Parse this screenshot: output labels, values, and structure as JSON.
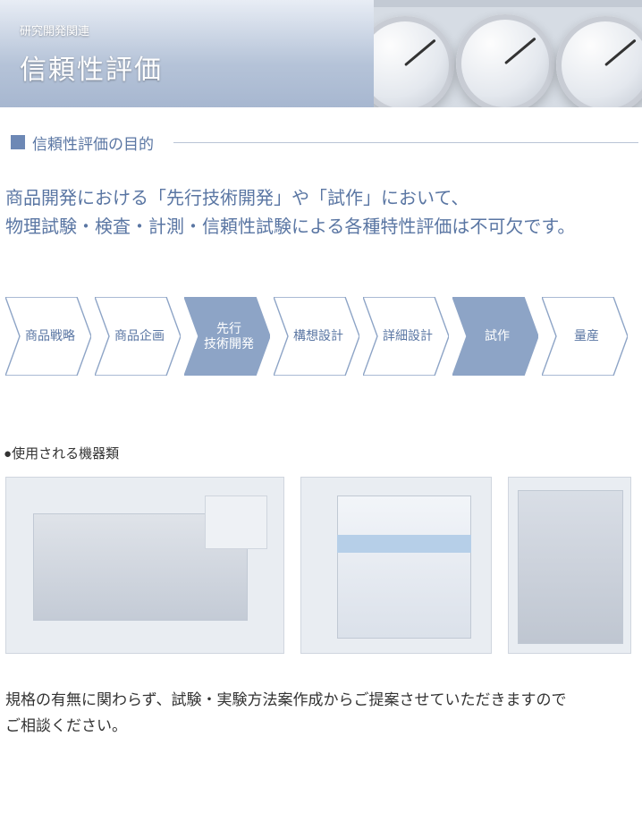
{
  "banner": {
    "category": "研究開発関連",
    "title": "信頼性評価",
    "grad_top": "#e8edf5",
    "grad_mid": "#b5c3d8",
    "grad_bot": "#a7b7d0"
  },
  "section_heading": {
    "marker_color": "#6d88b5",
    "text": "信頼性評価の目的",
    "text_color": "#5a76a3",
    "rule_color": "#b9c4d6"
  },
  "intro": {
    "line1": "商品開発における「先行技術開発」や「試作」において、",
    "line2": "物理試験・検査・計測・信頼性試験による各種特性評価は不可欠です。",
    "color": "#5a76a3",
    "fontsize": 20
  },
  "flow": {
    "outline_stroke": "#8da4c6",
    "outline_text_color": "#5a76a3",
    "fill_color": "#8da4c6",
    "fill_text_color": "#ffffff",
    "steps": [
      {
        "label": "商品戦略",
        "filled": false
      },
      {
        "label": "商品企画",
        "filled": false
      },
      {
        "label": "先行\n技術開発",
        "filled": true
      },
      {
        "label": "構想設計",
        "filled": false
      },
      {
        "label": "詳細設計",
        "filled": false
      },
      {
        "label": "試作",
        "filled": true
      },
      {
        "label": "量産",
        "filled": false
      }
    ]
  },
  "subheading": {
    "text": "使用される機器類",
    "bullet": "●"
  },
  "closing": {
    "line1": "規格の有無に関わらず、試験・実験方法案作成からご提案させていただきますので",
    "line2": "ご相談ください。"
  }
}
